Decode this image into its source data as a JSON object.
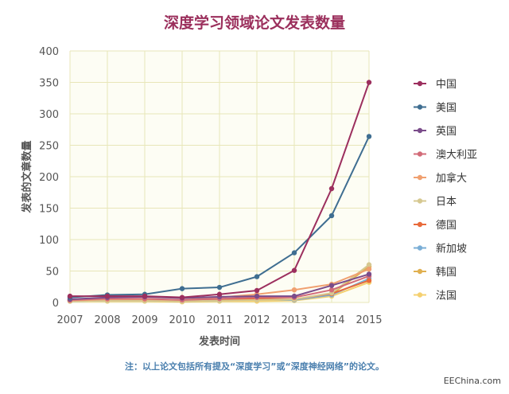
{
  "chart_data": {
    "type": "line",
    "title": "深度学习领域论文发表数量",
    "xlabel": "发表时间",
    "ylabel": "发表的文章数量",
    "x": [
      "2007",
      "2008",
      "2009",
      "2010",
      "2011",
      "2012",
      "2013",
      "2014",
      "2015"
    ],
    "ylim": [
      0,
      400
    ],
    "yticks": [
      0,
      50,
      100,
      150,
      200,
      250,
      300,
      350,
      400
    ],
    "grid": true,
    "legend_position": "right",
    "series": [
      {
        "name": "中国",
        "color": "#9c2f5e",
        "values": [
          10,
          10,
          10,
          8,
          13,
          19,
          51,
          181,
          350
        ]
      },
      {
        "name": "美国",
        "color": "#3f6e91",
        "values": [
          8,
          12,
          13,
          22,
          24,
          41,
          79,
          138,
          264
        ]
      },
      {
        "name": "英国",
        "color": "#7a4c8a",
        "values": [
          5,
          8,
          9,
          7,
          9,
          10,
          10,
          27,
          45
        ]
      },
      {
        "name": "澳大利亚",
        "color": "#d26b78",
        "values": [
          4,
          6,
          6,
          4,
          6,
          8,
          8,
          20,
          42
        ]
      },
      {
        "name": "加拿大",
        "color": "#f0a070",
        "values": [
          3,
          5,
          5,
          4,
          8,
          13,
          20,
          29,
          53
        ]
      },
      {
        "name": "日本",
        "color": "#d6c890",
        "values": [
          2,
          3,
          3,
          2,
          3,
          4,
          5,
          15,
          60
        ]
      },
      {
        "name": "德国",
        "color": "#e86a3a",
        "values": [
          3,
          4,
          4,
          2,
          4,
          6,
          5,
          14,
          35
        ]
      },
      {
        "name": "新加坡",
        "color": "#7aaed6",
        "values": [
          2,
          3,
          3,
          2,
          3,
          5,
          4,
          12,
          38
        ]
      },
      {
        "name": "韩国",
        "color": "#e0b050",
        "values": [
          3,
          4,
          4,
          3,
          4,
          5,
          5,
          13,
          57
        ]
      },
      {
        "name": "法国",
        "color": "#f5d070",
        "values": [
          2,
          2,
          2,
          1,
          2,
          2,
          3,
          10,
          32
        ]
      }
    ]
  },
  "note": "注：以上论文包括所有提及“深度学习”或“深度神经网络”的论文。",
  "watermark": "EEChina.com"
}
